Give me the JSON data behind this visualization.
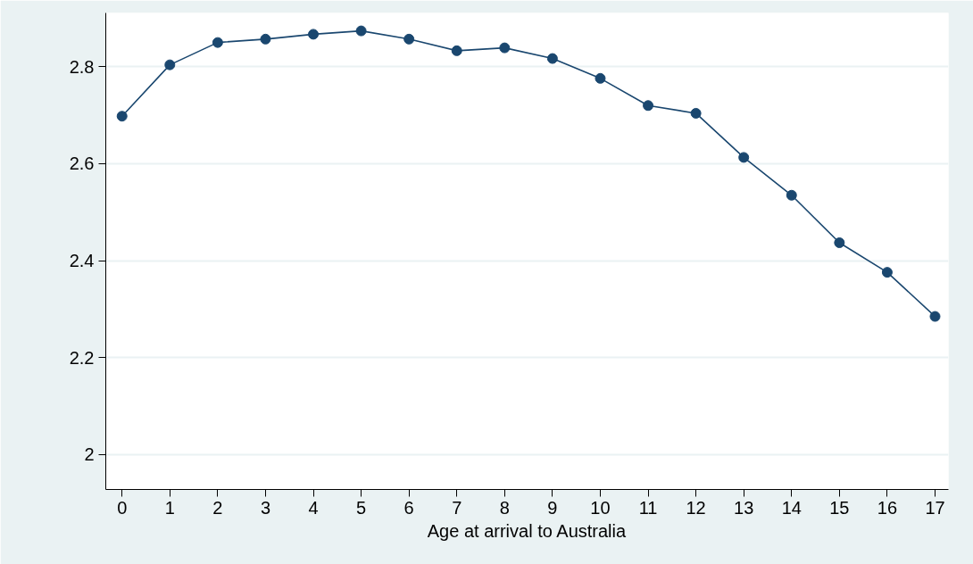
{
  "chart_data": {
    "type": "line",
    "xlabel": "Age at arrival to Australia",
    "x": [
      0,
      1,
      2,
      3,
      4,
      5,
      6,
      7,
      8,
      9,
      10,
      11,
      12,
      13,
      14,
      15,
      16,
      17
    ],
    "series": [
      {
        "color": "#1a476f",
        "values": [
          2.698,
          2.804,
          2.85,
          2.857,
          2.867,
          2.874,
          2.857,
          2.833,
          2.839,
          2.817,
          2.776,
          2.72,
          2.704,
          2.613,
          2.535,
          2.437,
          2.376,
          2.285
        ]
      }
    ],
    "xlim": [
      -0.34,
      17.28
    ],
    "ylim": [
      1.928,
      2.911
    ],
    "xticks": [
      0,
      1,
      2,
      3,
      4,
      5,
      6,
      7,
      8,
      9,
      10,
      11,
      12,
      13,
      14,
      15,
      16,
      17
    ],
    "yticks": [
      {
        "value": 2,
        "label": "2"
      },
      2.2,
      2.4,
      2.6,
      2.8
    ],
    "grid": "y",
    "marker": "circle",
    "line_style": "solid"
  }
}
